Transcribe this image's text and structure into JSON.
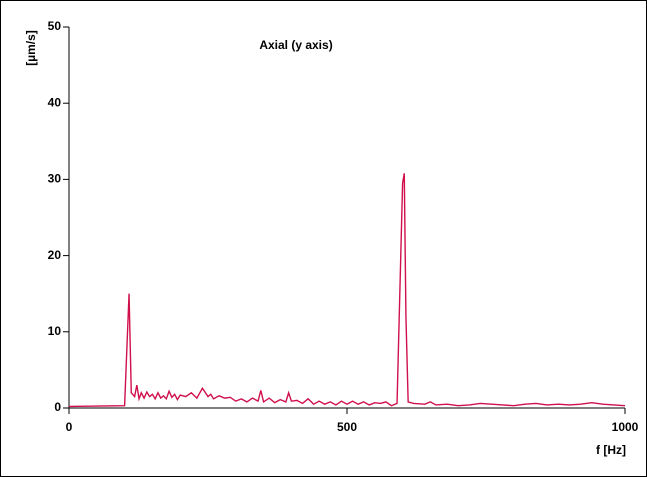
{
  "chart_data": {
    "type": "line",
    "title": "Axial (y axis)",
    "y_label": "[µm/s]",
    "x_label": "f [Hz]",
    "x": [
      0,
      100,
      108,
      112,
      118,
      122,
      126,
      130,
      135,
      140,
      145,
      150,
      155,
      160,
      165,
      170,
      175,
      180,
      185,
      190,
      195,
      200,
      210,
      220,
      230,
      240,
      250,
      255,
      260,
      270,
      280,
      290,
      300,
      310,
      320,
      330,
      340,
      345,
      350,
      360,
      370,
      380,
      390,
      395,
      400,
      410,
      420,
      430,
      440,
      450,
      460,
      470,
      480,
      490,
      500,
      510,
      520,
      530,
      540,
      550,
      560,
      570,
      580,
      590,
      600,
      603,
      606,
      610,
      620,
      640,
      650,
      660,
      680,
      700,
      720,
      740,
      760,
      780,
      800,
      820,
      840,
      860,
      880,
      900,
      920,
      940,
      960,
      980,
      1000
    ],
    "series": [
      {
        "name": "Axial",
        "color": "#d0104c",
        "values": [
          0.2,
          0.3,
          15,
          2,
          1.5,
          3,
          1.2,
          2,
          1.3,
          2.1,
          1.5,
          1.8,
          1.2,
          2,
          1.3,
          1.6,
          1.2,
          2.2,
          1.4,
          1.8,
          1.1,
          1.7,
          1.5,
          2,
          1.3,
          2.6,
          1.5,
          1.8,
          1.2,
          1.6,
          1.3,
          1.4,
          0.9,
          1.2,
          0.8,
          1.3,
          0.9,
          2.3,
          0.8,
          1.3,
          0.7,
          1.1,
          0.8,
          2,
          0.9,
          1,
          0.6,
          1.2,
          0.5,
          0.9,
          0.5,
          0.8,
          0.4,
          0.9,
          0.5,
          0.9,
          0.5,
          0.8,
          0.4,
          0.7,
          0.6,
          0.8,
          0.3,
          0.6,
          29.5,
          30.8,
          12,
          0.8,
          0.6,
          0.5,
          0.8,
          0.4,
          0.5,
          0.3,
          0.4,
          0.6,
          0.5,
          0.4,
          0.3,
          0.5,
          0.6,
          0.4,
          0.5,
          0.4,
          0.5,
          0.7,
          0.5,
          0.4,
          0.3
        ]
      }
    ],
    "xlim": [
      0,
      1000
    ],
    "ylim": [
      0,
      50
    ],
    "xticks": [
      0,
      500,
      1000
    ],
    "yticks": [
      0,
      10,
      20,
      30,
      40,
      50
    ]
  }
}
